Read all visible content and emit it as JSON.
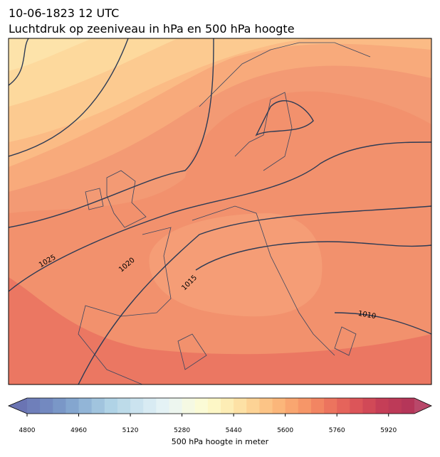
{
  "header": {
    "title": "10-06-1823 12 UTC",
    "subtitle": "Luchtdruk op zeeniveau in hPa en 500 hPa hoogte"
  },
  "contour_labels": [
    "1025",
    "1020",
    "1015",
    "1010"
  ],
  "colorbar": {
    "label": "500 hPa hoogte in meter",
    "range": [
      4800,
      6000
    ],
    "ticks": [
      4800,
      4960,
      5120,
      5280,
      5440,
      5600,
      5760,
      5920
    ],
    "under_color": "#6a74b3",
    "over_color": "#b9486a",
    "colors": [
      "#6f7fba",
      "#7389c0",
      "#7a97c7",
      "#84a6cf",
      "#92b5d7",
      "#a1c4de",
      "#b0d3e6",
      "#bddbe9",
      "#cbe3ef",
      "#d8ebf3",
      "#e4f2f5",
      "#edf6ef",
      "#f5f9e3",
      "#fbfbd6",
      "#fdf7c6",
      "#fdedb5",
      "#fde1a5",
      "#fdd395",
      "#fcc486",
      "#fbb67a",
      "#f9a670",
      "#f69668",
      "#f28562",
      "#ec745e",
      "#e5645b",
      "#dc5559",
      "#d14957",
      "#c53e57",
      "#bd3a58",
      "#b53659"
    ]
  }
}
